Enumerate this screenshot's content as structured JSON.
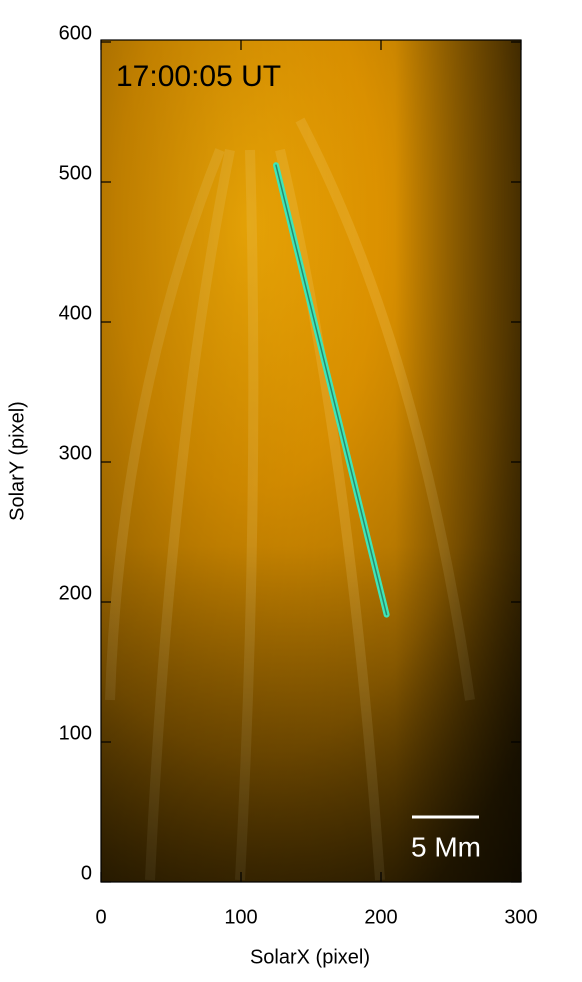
{
  "chart_data": {
    "type": "image",
    "timestamp": "17:00:05 UT",
    "scale_bar_label": "5 Mm",
    "xlabel": "SolarX (pixel)",
    "ylabel": "SolarY (pixel)",
    "xlim": [
      0,
      300
    ],
    "ylim": [
      0,
      600
    ],
    "xticks": [
      0,
      100,
      200,
      300
    ],
    "yticks": [
      0,
      100,
      200,
      300,
      400,
      500,
      600
    ],
    "slit": {
      "color": "#3fe6b8",
      "x": [
        125,
        204
      ],
      "y": [
        512,
        191
      ]
    }
  }
}
